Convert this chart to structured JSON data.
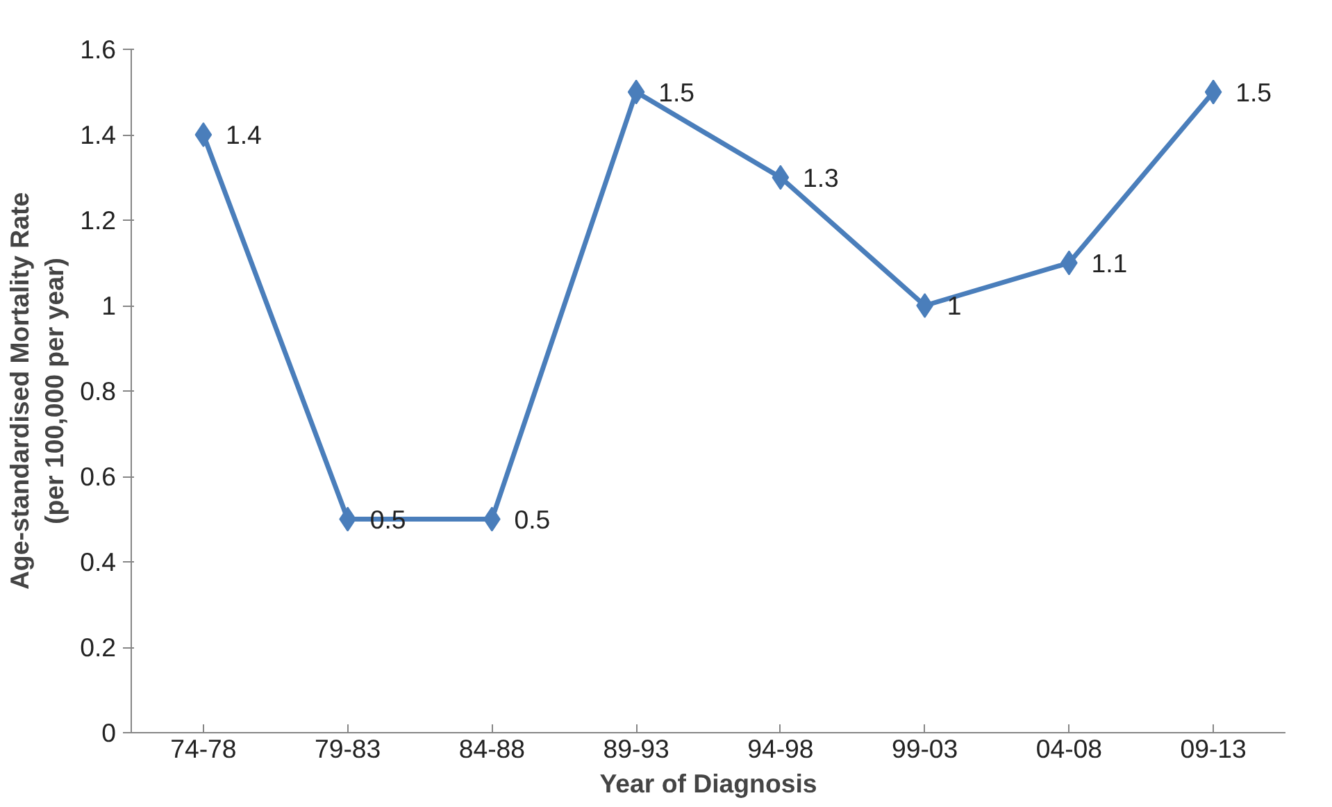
{
  "chart_data": {
    "type": "line",
    "xlabel": "Year of Diagnosis",
    "ylabel": "Age-standardised Mortality Rate\n(per 100,000 per year)",
    "categories": [
      "74-78",
      "79-83",
      "84-88",
      "89-93",
      "94-98",
      "99-03",
      "04-08",
      "09-13"
    ],
    "series": [
      {
        "color": "#4a7ebb",
        "values": [
          1.4,
          0.5,
          0.5,
          1.5,
          1.3,
          1,
          1.1,
          1.5
        ]
      }
    ],
    "ylim": [
      0,
      1.6
    ],
    "yticks": [
      0,
      0.2,
      0.4,
      0.6,
      0.8,
      1,
      1.2,
      1.4,
      1.6
    ],
    "data_labels": true,
    "marker": "diamond",
    "line_style": "solid"
  }
}
